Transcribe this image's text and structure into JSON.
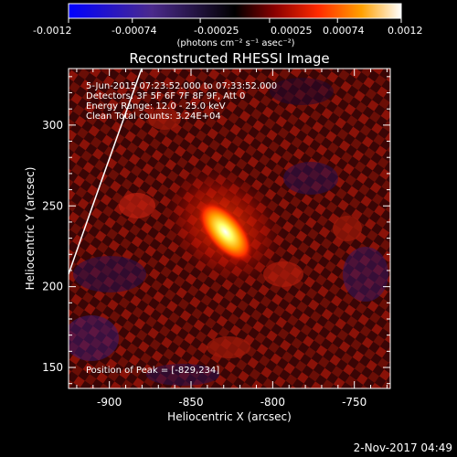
{
  "colorbar": {
    "tick_labels": [
      "-0.0012",
      "-0.00074",
      "-0.00025",
      "0.00025",
      "0.00074",
      "0.0012"
    ],
    "units_label": "(photons cm⁻² s⁻¹ asec⁻²)",
    "colors": [
      "#0000ff",
      "#5a2a9a",
      "#000000",
      "#b01010",
      "#ff3b00",
      "#ff9a00",
      "#ffff66",
      "#ffffff"
    ]
  },
  "image": {
    "title": "Reconstructed RHESSI Image",
    "info_lines": [
      "5-Jun-2015 07:23:52.000 to 07:33:52.000",
      "Detectors: 3F 5F 6F 7F 8F 9F, Att 0",
      "Energy Range: 12.0 - 25.0 keV",
      "Clean    Total counts: 3.24E+04"
    ],
    "peak_label": "Position of Peak = [-829,234]",
    "x_axis_label": "Heliocentric X (arcsec)",
    "y_axis_label": "Heliocentric Y (arcsec)",
    "x_ticks": [
      "-900",
      "-850",
      "-800",
      "-750"
    ],
    "y_ticks": [
      "150",
      "200",
      "250",
      "300"
    ],
    "x_tick_values": [
      -900,
      -850,
      -800,
      -750
    ],
    "y_tick_values": [
      150,
      200,
      250,
      300
    ],
    "x_range": [
      -925,
      -728
    ],
    "y_range": [
      137,
      335
    ],
    "peak_position": [
      -829,
      234
    ]
  },
  "footer": {
    "timestamp": "2-Nov-2017 04:49"
  }
}
